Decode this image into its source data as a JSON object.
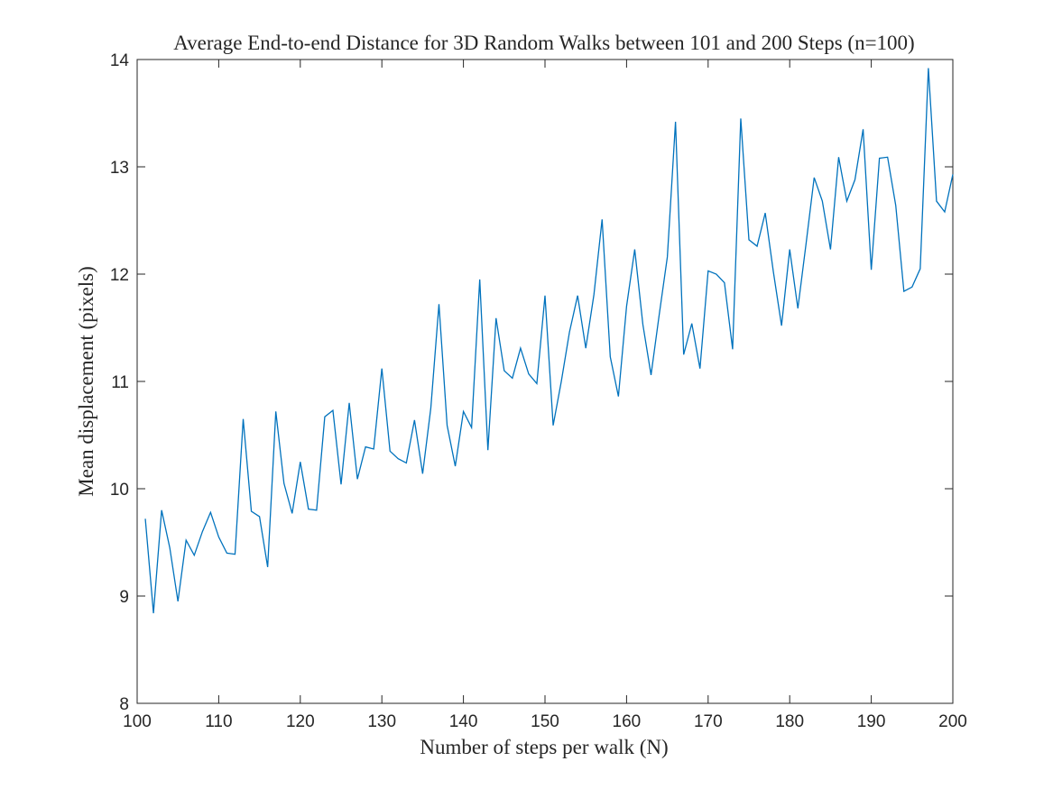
{
  "chart_data": {
    "type": "line",
    "title": "Average End-to-end Distance for 3D Random Walks between 101 and 200 Steps (n=100)",
    "xlabel": "Number of steps per walk (N)",
    "ylabel": "Mean displacement (pixels)",
    "xlim": [
      100,
      200
    ],
    "ylim": [
      8,
      14
    ],
    "xticks": [
      100,
      110,
      120,
      130,
      140,
      150,
      160,
      170,
      180,
      190,
      200
    ],
    "yticks": [
      8,
      9,
      10,
      11,
      12,
      13,
      14
    ],
    "grid": false,
    "line_color": "#0072BD",
    "series": [
      {
        "x": [
          101,
          102,
          103,
          104,
          105,
          106,
          107,
          108,
          109,
          110,
          111,
          112,
          113,
          114,
          115,
          116,
          117,
          118,
          119,
          120,
          121,
          122,
          123,
          124,
          125,
          126,
          127,
          128,
          129,
          130,
          131,
          132,
          133,
          134,
          135,
          136,
          137,
          138,
          139,
          140,
          141,
          142,
          143,
          144,
          145,
          146,
          147,
          148,
          149,
          150,
          151,
          152,
          153,
          154,
          155,
          156,
          157,
          158,
          159,
          160,
          161,
          162,
          163,
          164,
          165,
          166,
          167,
          168,
          169,
          170,
          171,
          172,
          173,
          174,
          175,
          176,
          177,
          178,
          179,
          180,
          181,
          182,
          183,
          184,
          185,
          186,
          187,
          188,
          189,
          190,
          191,
          192,
          193,
          194,
          195,
          196,
          197,
          198,
          199,
          200
        ],
        "values": [
          9.72,
          8.84,
          9.8,
          9.45,
          8.95,
          9.52,
          9.38,
          9.6,
          9.78,
          9.55,
          9.4,
          9.39,
          10.65,
          9.79,
          9.74,
          9.27,
          10.72,
          10.05,
          9.77,
          10.25,
          9.81,
          9.8,
          10.67,
          10.73,
          10.04,
          10.8,
          10.09,
          10.39,
          10.37,
          11.12,
          10.35,
          10.28,
          10.24,
          10.64,
          10.14,
          10.75,
          11.72,
          10.59,
          10.21,
          10.72,
          10.57,
          11.95,
          10.36,
          11.59,
          11.1,
          11.03,
          11.31,
          11.07,
          10.98,
          11.8,
          10.59,
          11.0,
          11.46,
          11.8,
          11.31,
          11.81,
          12.51,
          11.23,
          10.86,
          11.7,
          12.23,
          11.53,
          11.06,
          11.62,
          12.16,
          13.42,
          11.25,
          11.54,
          11.12,
          12.03,
          12.0,
          11.92,
          11.3,
          13.45,
          12.32,
          12.26,
          12.57,
          12.02,
          11.52,
          12.23,
          11.68,
          12.28,
          12.9,
          12.68,
          12.23,
          13.09,
          12.68,
          12.88,
          13.35,
          12.04,
          13.08,
          13.09,
          12.64,
          11.84,
          11.88,
          12.05,
          13.92,
          12.68,
          12.58,
          12.93
        ]
      }
    ]
  }
}
